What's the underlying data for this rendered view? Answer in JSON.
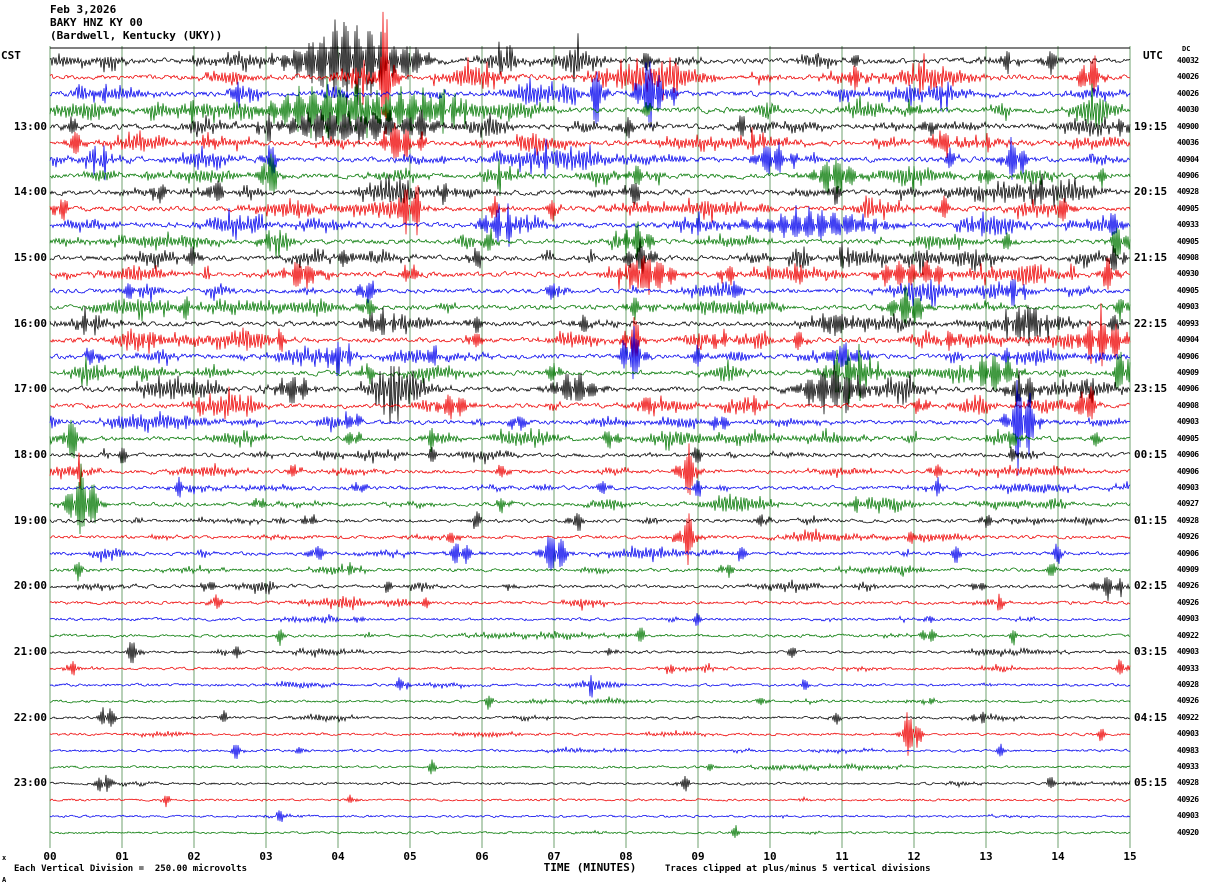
{
  "title": {
    "date": "Feb 3,2026",
    "station": "BAKY HNZ KY 00",
    "location": "(Bardwell, Kentucky (UKY))"
  },
  "axes": {
    "left_tz": "CST",
    "right_tz": "UTC",
    "dc_header": "DC",
    "x_label": "TIME (MINUTES)",
    "x_ticks": [
      "00",
      "01",
      "02",
      "03",
      "04",
      "05",
      "06",
      "07",
      "08",
      "09",
      "10",
      "11",
      "12",
      "13",
      "14",
      "15"
    ]
  },
  "footer": {
    "divisions": "Each Vertical Division =  250.00 microvolts",
    "clipped": "Traces clipped at plus/minus 5 vertical divisions",
    "mark_top": "x",
    "mark_bottom": "A"
  },
  "chart_data": {
    "type": "line",
    "subtype": "helicorder-seismogram",
    "title": "BAKY HNZ KY 00 (Bardwell, Kentucky (UKY)) Feb 3,2026",
    "xlabel": "TIME (MINUTES)",
    "x_range": [
      0,
      15
    ],
    "minutes_per_row": 15,
    "rows_total": 48,
    "trace_color_cycle": [
      "#000000",
      "#ee0000",
      "#0000ee",
      "#007700"
    ],
    "grid_color": "#6fa06f",
    "left_labels": [
      {
        "row": 4,
        "text": "13:00"
      },
      {
        "row": 8,
        "text": "14:00"
      },
      {
        "row": 12,
        "text": "15:00"
      },
      {
        "row": 16,
        "text": "16:00"
      },
      {
        "row": 20,
        "text": "17:00"
      },
      {
        "row": 24,
        "text": "18:00"
      },
      {
        "row": 28,
        "text": "19:00"
      },
      {
        "row": 32,
        "text": "20:00"
      },
      {
        "row": 36,
        "text": "21:00"
      },
      {
        "row": 40,
        "text": "22:00"
      },
      {
        "row": 44,
        "text": "23:00"
      }
    ],
    "right_labels": [
      {
        "row": 4,
        "text": "19:15"
      },
      {
        "row": 8,
        "text": "20:15"
      },
      {
        "row": 12,
        "text": "21:15"
      },
      {
        "row": 16,
        "text": "22:15"
      },
      {
        "row": 20,
        "text": "23:15"
      },
      {
        "row": 24,
        "text": "00:15"
      },
      {
        "row": 28,
        "text": "01:15"
      },
      {
        "row": 32,
        "text": "02:15"
      },
      {
        "row": 36,
        "text": "03:15"
      },
      {
        "row": 40,
        "text": "04:15"
      },
      {
        "row": 44,
        "text": "05:15"
      }
    ],
    "dc_values": [
      "40032",
      "40026",
      "40026",
      "40030",
      "40900",
      "40036",
      "40904",
      "40906",
      "40928",
      "40905",
      "40933",
      "40905",
      "40908",
      "40930",
      "40905",
      "40903",
      "40993",
      "40904",
      "40906",
      "40909",
      "40906",
      "40908",
      "40903",
      "40905",
      "40906",
      "40906",
      "40903",
      "40927",
      "40928",
      "40926",
      "40906",
      "40909",
      "40926",
      "40926",
      "40903",
      "40922",
      "40903",
      "40933",
      "40928",
      "40926",
      "40922",
      "40903",
      "40983",
      "40933",
      "40928",
      "40926",
      "40903",
      "40920"
    ],
    "activity": [
      0.95,
      0.9,
      0.9,
      0.95,
      0.9,
      0.9,
      0.85,
      0.85,
      0.85,
      0.85,
      0.9,
      0.8,
      0.85,
      0.9,
      0.75,
      0.75,
      0.8,
      0.85,
      0.8,
      0.8,
      0.85,
      0.75,
      0.7,
      0.7,
      0.6,
      0.55,
      0.55,
      0.55,
      0.5,
      0.45,
      0.5,
      0.45,
      0.45,
      0.4,
      0.35,
      0.35,
      0.3,
      0.3,
      0.3,
      0.28,
      0.28,
      0.25,
      0.25,
      0.22,
      0.22,
      0.2,
      0.18,
      0.18
    ],
    "events": [
      [
        [
          3.75,
          26,
          0.45
        ],
        [
          4.15,
          32,
          0.35
        ],
        [
          4.6,
          22,
          0.3
        ],
        [
          5.0,
          18,
          0.25
        ],
        [
          6.3,
          16,
          0.08
        ],
        [
          8.3,
          14,
          0.1
        ],
        [
          11.2,
          10,
          0.08
        ],
        [
          13.3,
          12,
          0.1
        ],
        [
          13.9,
          14,
          0.12
        ]
      ],
      [
        [
          4.65,
          68,
          0.12
        ],
        [
          4.45,
          18,
          0.2
        ],
        [
          6.1,
          10,
          0.08
        ],
        [
          7.8,
          10,
          0.06
        ],
        [
          11.2,
          14,
          0.1
        ],
        [
          12.1,
          10,
          0.08
        ],
        [
          14.45,
          22,
          0.15
        ]
      ],
      [
        [
          0.7,
          10,
          0.08
        ],
        [
          2.6,
          12,
          0.1
        ],
        [
          7.6,
          32,
          0.1
        ],
        [
          8.35,
          42,
          0.18
        ],
        [
          8.6,
          22,
          0.1
        ],
        [
          12.4,
          10,
          0.08
        ]
      ],
      [
        [
          2.0,
          14,
          0.1
        ],
        [
          3.5,
          20,
          0.5
        ],
        [
          4.1,
          26,
          0.7
        ],
        [
          4.9,
          24,
          0.6
        ],
        [
          5.5,
          16,
          0.3
        ],
        [
          8.3,
          10,
          0.1
        ],
        [
          12.0,
          10,
          0.08
        ]
      ],
      [
        [
          0.3,
          10,
          0.1
        ],
        [
          3.0,
          12,
          0.1
        ],
        [
          3.9,
          18,
          0.6
        ],
        [
          4.5,
          16,
          0.4
        ],
        [
          5.1,
          14,
          0.3
        ],
        [
          8.0,
          14,
          0.1
        ],
        [
          9.6,
          12,
          0.1
        ],
        [
          12.2,
          10,
          0.1
        ],
        [
          14.9,
          12,
          0.1
        ]
      ],
      [
        [
          0.35,
          16,
          0.12
        ],
        [
          2.2,
          10,
          0.08
        ],
        [
          4.85,
          28,
          0.2
        ],
        [
          5.1,
          16,
          0.12
        ],
        [
          9.8,
          12,
          0.1
        ],
        [
          12.4,
          14,
          0.15
        ],
        [
          13.0,
          10,
          0.08
        ]
      ],
      [
        [
          0.7,
          14,
          0.1
        ],
        [
          3.05,
          16,
          0.1
        ],
        [
          6.9,
          12,
          0.1
        ],
        [
          10.05,
          22,
          0.25
        ],
        [
          10.3,
          14,
          0.12
        ],
        [
          12.5,
          12,
          0.1
        ],
        [
          13.4,
          26,
          0.15
        ]
      ],
      [
        [
          3.05,
          28,
          0.12
        ],
        [
          6.3,
          10,
          0.1
        ],
        [
          8.15,
          14,
          0.12
        ],
        [
          10.9,
          20,
          0.3
        ],
        [
          13.0,
          12,
          0.1
        ],
        [
          14.6,
          10,
          0.1
        ]
      ],
      [
        [
          1.5,
          14,
          0.1
        ],
        [
          2.3,
          16,
          0.12
        ],
        [
          5.5,
          12,
          0.1
        ],
        [
          8.1,
          14,
          0.12
        ],
        [
          10.9,
          12,
          0.1
        ],
        [
          13.7,
          16,
          0.12
        ]
      ],
      [
        [
          0.15,
          14,
          0.1
        ],
        [
          5.0,
          32,
          0.15
        ],
        [
          6.2,
          12,
          0.1
        ],
        [
          7.0,
          12,
          0.08
        ],
        [
          12.4,
          12,
          0.1
        ],
        [
          14.1,
          14,
          0.1
        ]
      ],
      [
        [
          6.25,
          20,
          0.25
        ],
        [
          9.0,
          10,
          0.08
        ],
        [
          10.6,
          16,
          0.85
        ],
        [
          12.9,
          12,
          0.1
        ],
        [
          14.8,
          16,
          0.1
        ]
      ],
      [
        [
          3.0,
          12,
          0.1
        ],
        [
          6.1,
          12,
          0.1
        ],
        [
          8.15,
          18,
          0.2
        ],
        [
          13.3,
          10,
          0.1
        ],
        [
          14.85,
          20,
          0.12
        ]
      ],
      [
        [
          2.0,
          12,
          0.1
        ],
        [
          4.1,
          12,
          0.1
        ],
        [
          5.9,
          12,
          0.1
        ],
        [
          8.2,
          16,
          0.2
        ],
        [
          11.0,
          10,
          0.1
        ],
        [
          14.8,
          14,
          0.12
        ]
      ],
      [
        [
          3.5,
          18,
          0.2
        ],
        [
          5.0,
          14,
          0.1
        ],
        [
          8.3,
          24,
          0.35
        ],
        [
          9.4,
          14,
          0.1
        ],
        [
          10.4,
          12,
          0.1
        ],
        [
          11.8,
          16,
          0.3
        ],
        [
          12.3,
          14,
          0.15
        ],
        [
          14.7,
          18,
          0.12
        ]
      ],
      [
        [
          1.1,
          12,
          0.1
        ],
        [
          4.4,
          14,
          0.12
        ],
        [
          7.0,
          12,
          0.1
        ],
        [
          9.5,
          12,
          0.1
        ],
        [
          13.4,
          16,
          0.12
        ]
      ],
      [
        [
          1.9,
          12,
          0.1
        ],
        [
          4.4,
          12,
          0.1
        ],
        [
          8.1,
          12,
          0.1
        ],
        [
          11.9,
          20,
          0.25
        ],
        [
          14.9,
          14,
          0.1
        ]
      ],
      [
        [
          0.5,
          12,
          0.1
        ],
        [
          4.6,
          16,
          0.2
        ],
        [
          5.9,
          12,
          0.1
        ],
        [
          7.4,
          12,
          0.1
        ],
        [
          10.9,
          16,
          0.2
        ],
        [
          13.55,
          20,
          0.3
        ],
        [
          14.8,
          12,
          0.1
        ]
      ],
      [
        [
          1.4,
          12,
          0.1
        ],
        [
          3.2,
          12,
          0.1
        ],
        [
          5.9,
          12,
          0.1
        ],
        [
          8.1,
          28,
          0.12
        ],
        [
          9.3,
          12,
          0.1
        ],
        [
          10.4,
          12,
          0.1
        ],
        [
          12.5,
          12,
          0.1
        ],
        [
          14.6,
          26,
          0.3
        ]
      ],
      [
        [
          0.6,
          12,
          0.1
        ],
        [
          4.0,
          16,
          0.2
        ],
        [
          5.3,
          12,
          0.1
        ],
        [
          8.1,
          30,
          0.15
        ],
        [
          9.0,
          12,
          0.1
        ],
        [
          11.0,
          16,
          0.2
        ],
        [
          13.3,
          12,
          0.1
        ]
      ],
      [
        [
          4.4,
          12,
          0.1
        ],
        [
          7.0,
          12,
          0.1
        ],
        [
          11.1,
          24,
          0.3
        ],
        [
          13.1,
          22,
          0.3
        ],
        [
          14.9,
          24,
          0.12
        ]
      ],
      [
        [
          3.4,
          18,
          0.2
        ],
        [
          4.7,
          14,
          0.1
        ],
        [
          7.3,
          18,
          0.3
        ],
        [
          10.85,
          26,
          0.4
        ],
        [
          13.5,
          18,
          0.2
        ],
        [
          14.4,
          14,
          0.1
        ]
      ],
      [
        [
          2.1,
          12,
          0.1
        ],
        [
          5.6,
          16,
          0.2
        ],
        [
          8.3,
          12,
          0.1
        ],
        [
          9.8,
          12,
          0.1
        ],
        [
          12.1,
          12,
          0.1
        ],
        [
          14.4,
          24,
          0.12
        ]
      ],
      [
        [
          4.2,
          12,
          0.1
        ],
        [
          6.5,
          12,
          0.1
        ],
        [
          9.3,
          12,
          0.1
        ],
        [
          13.5,
          44,
          0.18
        ]
      ],
      [
        [
          0.3,
          24,
          0.12
        ],
        [
          4.2,
          12,
          0.1
        ],
        [
          5.3,
          12,
          0.1
        ],
        [
          7.8,
          12,
          0.1
        ],
        [
          13.4,
          12,
          0.1
        ],
        [
          14.5,
          10,
          0.08
        ]
      ],
      [
        [
          1.0,
          10,
          0.08
        ],
        [
          5.3,
          10,
          0.08
        ],
        [
          9.0,
          10,
          0.08
        ],
        [
          13.4,
          10,
          0.08
        ]
      ],
      [
        [
          0.4,
          12,
          0.1
        ],
        [
          3.4,
          10,
          0.08
        ],
        [
          6.3,
          10,
          0.08
        ],
        [
          8.85,
          30,
          0.12
        ],
        [
          12.3,
          10,
          0.08
        ]
      ],
      [
        [
          1.8,
          10,
          0.08
        ],
        [
          4.3,
          10,
          0.08
        ],
        [
          7.7,
          10,
          0.08
        ],
        [
          9.0,
          10,
          0.08
        ],
        [
          12.3,
          10,
          0.08
        ]
      ],
      [
        [
          0.45,
          42,
          0.2
        ],
        [
          2.9,
          10,
          0.08
        ],
        [
          6.3,
          10,
          0.08
        ],
        [
          11.2,
          10,
          0.08
        ]
      ],
      [
        [
          3.6,
          10,
          0.08
        ],
        [
          5.9,
          10,
          0.08
        ],
        [
          7.3,
          12,
          0.1
        ],
        [
          9.9,
          10,
          0.08
        ],
        [
          13.0,
          10,
          0.08
        ]
      ],
      [
        [
          5.6,
          10,
          0.08
        ],
        [
          8.85,
          26,
          0.12
        ],
        [
          12.0,
          10,
          0.08
        ]
      ],
      [
        [
          3.7,
          12,
          0.1
        ],
        [
          5.7,
          14,
          0.15
        ],
        [
          7.0,
          28,
          0.15
        ],
        [
          9.6,
          10,
          0.08
        ],
        [
          12.6,
          10,
          0.08
        ],
        [
          14.0,
          10,
          0.08
        ]
      ],
      [
        [
          0.4,
          10,
          0.08
        ],
        [
          4.2,
          10,
          0.08
        ],
        [
          9.4,
          10,
          0.08
        ],
        [
          13.9,
          10,
          0.08
        ]
      ],
      [
        [
          2.2,
          10,
          0.08
        ],
        [
          4.7,
          8,
          0.06
        ],
        [
          6.4,
          8,
          0.06
        ],
        [
          12.9,
          10,
          0.08
        ],
        [
          14.7,
          12,
          0.2
        ]
      ],
      [
        [
          2.3,
          10,
          0.08
        ],
        [
          5.2,
          8,
          0.06
        ],
        [
          13.2,
          8,
          0.06
        ]
      ],
      [
        [
          4.3,
          8,
          0.06
        ],
        [
          9.0,
          8,
          0.06
        ],
        [
          12.2,
          8,
          0.06
        ]
      ],
      [
        [
          3.2,
          8,
          0.06
        ],
        [
          8.2,
          8,
          0.06
        ],
        [
          12.2,
          14,
          0.08
        ],
        [
          13.4,
          8,
          0.06
        ]
      ],
      [
        [
          1.15,
          14,
          0.1
        ],
        [
          2.6,
          8,
          0.06
        ],
        [
          7.8,
          8,
          0.06
        ],
        [
          10.3,
          8,
          0.06
        ]
      ],
      [
        [
          0.3,
          8,
          0.06
        ],
        [
          8.6,
          8,
          0.06
        ],
        [
          14.9,
          10,
          0.08
        ]
      ],
      [
        [
          4.9,
          10,
          0.08
        ],
        [
          7.5,
          8,
          0.06
        ],
        [
          10.5,
          8,
          0.06
        ]
      ],
      [
        [
          6.1,
          8,
          0.06
        ],
        [
          9.9,
          8,
          0.06
        ],
        [
          12.2,
          8,
          0.06
        ]
      ],
      [
        [
          0.8,
          16,
          0.1
        ],
        [
          2.4,
          8,
          0.06
        ],
        [
          10.9,
          8,
          0.06
        ],
        [
          12.9,
          10,
          0.08
        ]
      ],
      [
        [
          11.95,
          28,
          0.12
        ],
        [
          14.6,
          8,
          0.06
        ]
      ],
      [
        [
          2.6,
          10,
          0.08
        ],
        [
          3.5,
          8,
          0.06
        ],
        [
          13.2,
          8,
          0.06
        ]
      ],
      [
        [
          5.3,
          8,
          0.06
        ],
        [
          9.2,
          8,
          0.06
        ]
      ],
      [
        [
          0.75,
          12,
          0.1
        ],
        [
          8.8,
          10,
          0.08
        ],
        [
          13.9,
          8,
          0.06
        ]
      ],
      [
        [
          1.6,
          8,
          0.06
        ],
        [
          4.2,
          8,
          0.06
        ]
      ],
      [
        [
          3.2,
          8,
          0.06
        ]
      ],
      [
        [
          9.5,
          8,
          0.06
        ]
      ]
    ]
  }
}
